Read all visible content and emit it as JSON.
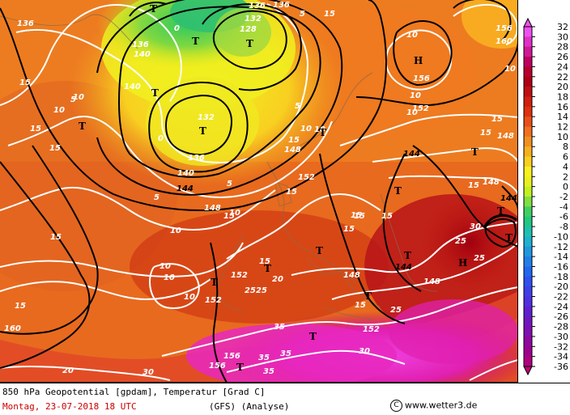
{
  "map": {
    "temperature_labels": [
      "15",
      "10",
      "15",
      "10",
      "15",
      "15",
      "15",
      "10",
      "10",
      "10",
      "20",
      "25",
      "25",
      "30",
      "35",
      "30",
      "35",
      "35",
      "35",
      "25",
      "30",
      "25",
      "25",
      "15",
      "15",
      "15",
      "20",
      "15",
      "15",
      "15",
      "10",
      "10",
      "10",
      "15",
      "5",
      "5",
      "0",
      "0",
      "5",
      "10",
      "15",
      "5",
      "10",
      "15",
      "10",
      "5",
      "15",
      "15",
      "15",
      "10",
      "15",
      "10"
    ],
    "geopotential_labels": [
      "136",
      "140",
      "136",
      "132",
      "128",
      "136",
      "140",
      "136",
      "132",
      "140",
      "144",
      "148",
      "152",
      "156",
      "160",
      "152",
      "152",
      "148",
      "144",
      "152",
      "148",
      "156",
      "156",
      "148",
      "144",
      "148",
      "152",
      "136",
      "156",
      "160",
      "148",
      "144"
    ],
    "symbols": [
      "T",
      "T",
      "T",
      "T",
      "T",
      "T",
      "T",
      "T",
      "T",
      "T",
      "T",
      "T",
      "T",
      "T",
      "T",
      "T",
      "T",
      "H",
      "H",
      "T"
    ]
  },
  "legend": {
    "values": [
      "32",
      "30",
      "28",
      "26",
      "24",
      "22",
      "20",
      "18",
      "16",
      "14",
      "12",
      "10",
      "8",
      "6",
      "4",
      "2",
      "0",
      "-2",
      "-4",
      "-6",
      "-8",
      "-10",
      "-12",
      "-14",
      "-16",
      "-18",
      "-20",
      "-22",
      "-24",
      "-26",
      "-28",
      "-30",
      "-32",
      "-34",
      "-36"
    ],
    "colors": [
      "#f050f0",
      "#e030c8",
      "#d01898",
      "#c00060",
      "#b80030",
      "#b00018",
      "#c01010",
      "#d02010",
      "#e03010",
      "#e85018",
      "#f07020",
      "#f09020",
      "#f8b020",
      "#f8d020",
      "#f8f020",
      "#e8f020",
      "#c0f020",
      "#80e040",
      "#40d060",
      "#20c880",
      "#20c0b0",
      "#20b0d0",
      "#2098e0",
      "#2080e8",
      "#2068f0",
      "#3050f0",
      "#4040e8",
      "#5030e0",
      "#6020d0",
      "#7018c0",
      "#8010b0",
      "#9008a0",
      "#a00090",
      "#b00080",
      "#c00070"
    ]
  },
  "footer": {
    "line1": "850 hPa Geopotential [gpdam], Temperatur [Grad C]",
    "date": "Montag, 23-07-2018  18 UTC",
    "model": "(GFS)   (Analyse)",
    "copyright_symbol": "C",
    "website": "www.wetter3.de"
  }
}
